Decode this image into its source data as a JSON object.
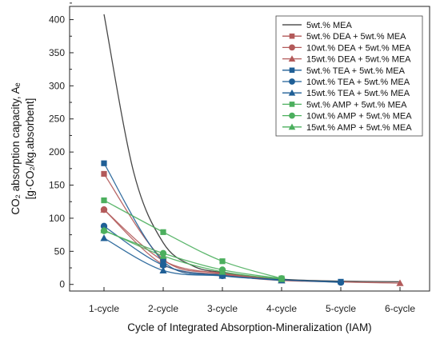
{
  "chart_data": {
    "type": "line",
    "xlabel": "Cycle of Integrated Absorption-Mineralization (IAM)",
    "ylabel_line1": "CO₂ absorption capacity, Aₑ",
    "ylabel_line2": "[g·CO₂/kg.absorbent]",
    "categories": [
      "1-cycle",
      "2-cycle",
      "3-cycle",
      "4-cycle",
      "5-cycle",
      "6-cycle"
    ],
    "ylim": [
      -10,
      420
    ],
    "yticks": [
      0,
      50,
      100,
      150,
      200,
      250,
      300,
      350,
      400
    ],
    "grid": false,
    "legend_position": "top-right",
    "series": [
      {
        "name": "5wt.% MEA",
        "color": "#333333",
        "marker": "none",
        "values": [
          null,
          null,
          null,
          null,
          null,
          null
        ],
        "curve": [
          [
            0,
            408
          ],
          [
            0.5,
            170
          ],
          [
            1,
            63
          ],
          [
            1.5,
            28
          ],
          [
            2,
            18
          ],
          [
            3,
            8
          ],
          [
            4,
            5
          ],
          [
            5,
            4
          ]
        ]
      },
      {
        "name": "5wt.% DEA + 5wt.% MEA",
        "color": "#b35a5a",
        "marker": "square",
        "values": [
          167,
          38,
          17,
          7,
          null,
          null
        ]
      },
      {
        "name": "10wt.% DEA + 5wt.% MEA",
        "color": "#b35a5a",
        "marker": "circle",
        "values": [
          113,
          36,
          16,
          7,
          null,
          null
        ]
      },
      {
        "name": "15wt.% DEA + 5wt.% MEA",
        "color": "#b35a5a",
        "marker": "triangle",
        "values": [
          113,
          30,
          15,
          6,
          null,
          2
        ]
      },
      {
        "name": "5wt.% TEA + 5wt.% MEA",
        "color": "#1f5f96",
        "marker": "square",
        "values": [
          183,
          35,
          14,
          7,
          4,
          null
        ]
      },
      {
        "name": "10wt.% TEA + 5wt.% MEA",
        "color": "#1f5f96",
        "marker": "circle",
        "values": [
          88,
          29,
          13,
          7,
          3,
          null
        ]
      },
      {
        "name": "15wt.% TEA + 5wt.% MEA",
        "color": "#1f5f96",
        "marker": "triangle",
        "values": [
          70,
          21,
          13,
          6,
          null,
          null
        ]
      },
      {
        "name": "5wt.% AMP + 5wt.% MEA",
        "color": "#4caf5e",
        "marker": "square",
        "values": [
          127,
          79,
          35,
          9,
          null,
          null
        ]
      },
      {
        "name": "10wt.% AMP + 5wt.% MEA",
        "color": "#4caf5e",
        "marker": "circle",
        "values": [
          81,
          47,
          22,
          9,
          null,
          null
        ]
      },
      {
        "name": "15wt.% AMP + 5wt.% MEA",
        "color": "#4caf5e",
        "marker": "triangle",
        "values": [
          82,
          43,
          19,
          8,
          null,
          null
        ]
      }
    ]
  }
}
